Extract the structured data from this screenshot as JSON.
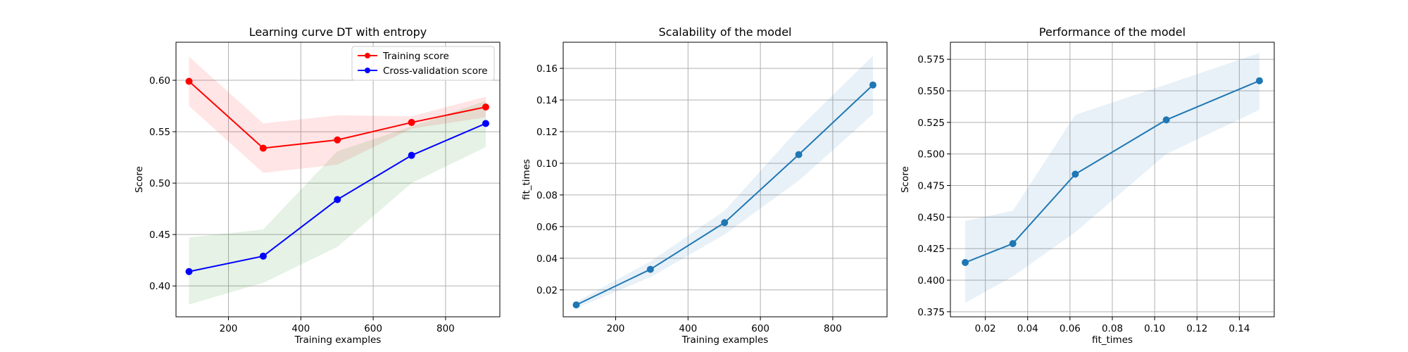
{
  "chart_data": [
    {
      "type": "line",
      "title": "Learning curve DT with entropy",
      "xlabel": "Training examples",
      "ylabel": "Score",
      "xlim": [
        55,
        950
      ],
      "ylim": [
        0.37,
        0.637
      ],
      "xticks": [
        200,
        400,
        600,
        800
      ],
      "xtick_labels": [
        "200",
        "400",
        "600",
        "800"
      ],
      "yticks": [
        0.4,
        0.45,
        0.5,
        0.55,
        0.6
      ],
      "ytick_labels": [
        "0.40",
        "0.45",
        "0.50",
        "0.55",
        "0.60"
      ],
      "grid": true,
      "legend": "top-right",
      "x": [
        91,
        296,
        501,
        706,
        911
      ],
      "series": [
        {
          "name": "Training score",
          "color": "#ff0000",
          "band_color": "#ff0000",
          "values": [
            0.599,
            0.534,
            0.542,
            0.559,
            0.574
          ],
          "upper": [
            0.623,
            0.558,
            0.566,
            0.565,
            0.584
          ],
          "lower": [
            0.575,
            0.51,
            0.518,
            0.553,
            0.564
          ]
        },
        {
          "name": "Cross-validation score",
          "color": "#0000ff",
          "band_color": "#008000",
          "values": [
            0.414,
            0.429,
            0.484,
            0.527,
            0.558
          ],
          "upper": [
            0.447,
            0.455,
            0.531,
            0.555,
            0.58
          ],
          "lower": [
            0.382,
            0.403,
            0.438,
            0.5,
            0.535
          ]
        }
      ]
    },
    {
      "type": "line",
      "title": "Scalability of the model",
      "xlabel": "Training examples",
      "ylabel": "fit_times",
      "xlim": [
        55,
        950
      ],
      "ylim": [
        0.003,
        0.1765
      ],
      "xticks": [
        200,
        400,
        600,
        800
      ],
      "xtick_labels": [
        "200",
        "400",
        "600",
        "800"
      ],
      "yticks": [
        0.02,
        0.04,
        0.06,
        0.08,
        0.1,
        0.12,
        0.14,
        0.16
      ],
      "ytick_labels": [
        "0.02",
        "0.04",
        "0.06",
        "0.08",
        "0.10",
        "0.12",
        "0.14",
        "0.16"
      ],
      "grid": true,
      "x": [
        91,
        296,
        501,
        706,
        911
      ],
      "series": [
        {
          "color": "#1f77b4",
          "band_color": "#1f77b4",
          "values": [
            0.0105,
            0.033,
            0.0625,
            0.1055,
            0.1495
          ],
          "upper": [
            0.0125,
            0.038,
            0.07,
            0.122,
            0.168
          ],
          "lower": [
            0.0085,
            0.028,
            0.055,
            0.089,
            0.131
          ]
        }
      ]
    },
    {
      "type": "line",
      "title": "Performance of the model",
      "xlabel": "fit_times",
      "ylabel": "Score",
      "xlim": [
        0.0035,
        0.1565
      ],
      "ylim": [
        0.371,
        0.5885
      ],
      "xticks": [
        0.02,
        0.04,
        0.06,
        0.08,
        0.1,
        0.12,
        0.14
      ],
      "xtick_labels": [
        "0.02",
        "0.04",
        "0.06",
        "0.08",
        "0.10",
        "0.12",
        "0.14"
      ],
      "yticks": [
        0.375,
        0.4,
        0.425,
        0.45,
        0.475,
        0.5,
        0.525,
        0.55,
        0.575
      ],
      "ytick_labels": [
        "0.375",
        "0.400",
        "0.425",
        "0.450",
        "0.475",
        "0.500",
        "0.525",
        "0.550",
        "0.575"
      ],
      "grid": true,
      "x": [
        0.0105,
        0.033,
        0.0625,
        0.1055,
        0.1495
      ],
      "series": [
        {
          "color": "#1f77b4",
          "band_color": "#1f77b4",
          "values": [
            0.414,
            0.429,
            0.484,
            0.527,
            0.558
          ],
          "upper": [
            0.447,
            0.455,
            0.531,
            0.555,
            0.58
          ],
          "lower": [
            0.382,
            0.403,
            0.438,
            0.5,
            0.535
          ]
        }
      ]
    }
  ]
}
